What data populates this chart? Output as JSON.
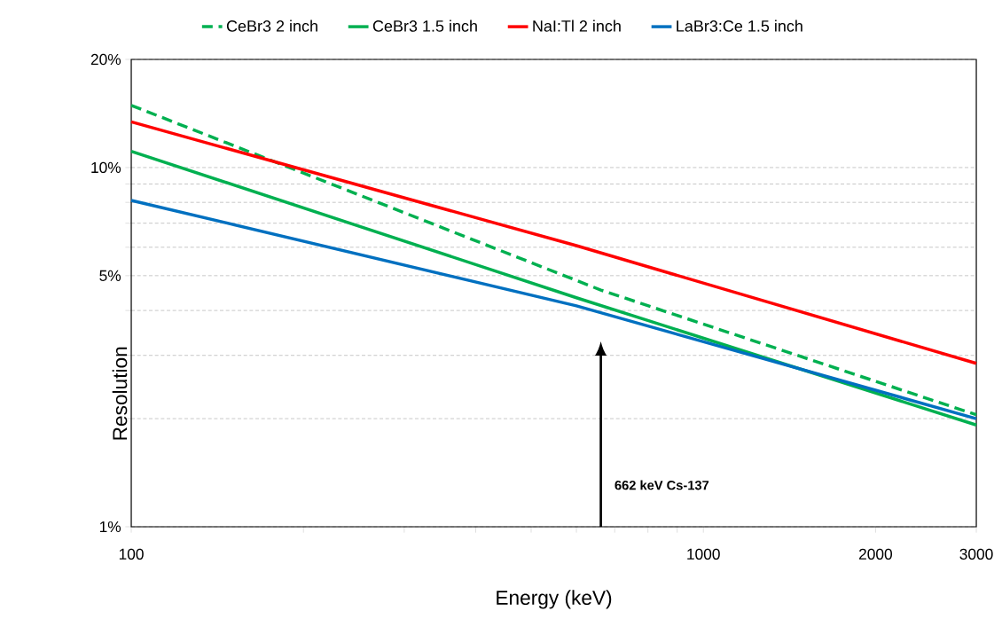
{
  "chart_data": {
    "type": "line",
    "xlabel": "Energy (keV)",
    "ylabel": "Resolution",
    "log": "xy",
    "grid": "y",
    "legend": "top",
    "xlim": [
      100,
      3000
    ],
    "ylim": [
      1,
      20
    ],
    "xticks": [
      100,
      {
        "value": 200,
        "label": null
      },
      {
        "value": 300,
        "label": null
      },
      {
        "value": 400,
        "label": null
      },
      {
        "value": 500,
        "label": null
      },
      {
        "value": 600,
        "label": null
      },
      {
        "value": 700,
        "label": null
      },
      {
        "value": 800,
        "label": null
      },
      {
        "value": 900,
        "label": null
      },
      1000,
      2000,
      3000
    ],
    "yticks": [
      {
        "value": 1,
        "label": "1%"
      },
      {
        "value": 2,
        "label": null
      },
      {
        "value": 3,
        "label": null
      },
      {
        "value": 4,
        "label": null
      },
      {
        "value": 5,
        "label": "5%"
      },
      {
        "value": 6,
        "label": null
      },
      {
        "value": 7,
        "label": null
      },
      {
        "value": 8,
        "label": null
      },
      {
        "value": 9,
        "label": null
      },
      {
        "value": 10,
        "label": "10%"
      },
      {
        "value": 20,
        "label": "20%"
      }
    ],
    "series": [
      {
        "name": "CeBr3 2 inch",
        "color": "#00b050",
        "line_style": "dashed",
        "x": [
          100,
          662,
          3000
        ],
        "values": [
          14.9,
          4.56,
          2.05
        ]
      },
      {
        "name": "CeBr3 1.5 inch",
        "color": "#00b050",
        "line_style": "solid",
        "x": [
          100,
          600,
          3000
        ],
        "values": [
          11.1,
          4.34,
          1.92
        ]
      },
      {
        "name": "NaI:Tl 2 inch",
        "color": "#ff0000",
        "line_style": "solid",
        "x": [
          100,
          600,
          1170,
          3000
        ],
        "values": [
          13.4,
          6.06,
          4.43,
          2.85
        ]
      },
      {
        "name": "LaBr3:Ce 1.5 inch",
        "color": "#0070c0",
        "line_style": "solid",
        "x": [
          100,
          600,
          3000
        ],
        "values": [
          8.1,
          4.12,
          2.0
        ]
      }
    ],
    "ref_lines": [
      {
        "axis": "x",
        "value": 662,
        "label": "662 keV Cs-137",
        "color": "#000000",
        "line_style": "solid"
      }
    ]
  }
}
